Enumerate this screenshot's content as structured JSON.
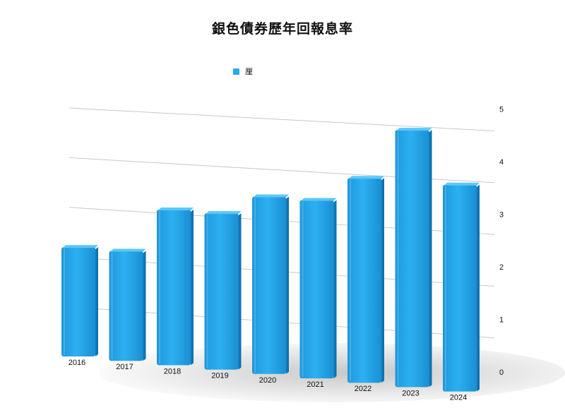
{
  "chart_data": {
    "type": "bar",
    "title": "銀色債券歷年回報息率",
    "categories": [
      "2016",
      "2017",
      "2018",
      "2019",
      "2020",
      "2021",
      "2022",
      "2023",
      "2024"
    ],
    "series": [
      {
        "name": "厘",
        "values": [
          2.2,
          2.2,
          3.1,
          3.1,
          3.5,
          3.5,
          4.0,
          5.0,
          4.0
        ]
      }
    ],
    "y_ticks": [
      "0",
      "1",
      "2",
      "3",
      "4",
      "5"
    ],
    "ylim": [
      0,
      5
    ],
    "xlabel": "",
    "ylabel": "",
    "grid": true,
    "legend": "top",
    "bar_color": "#27aaee"
  }
}
